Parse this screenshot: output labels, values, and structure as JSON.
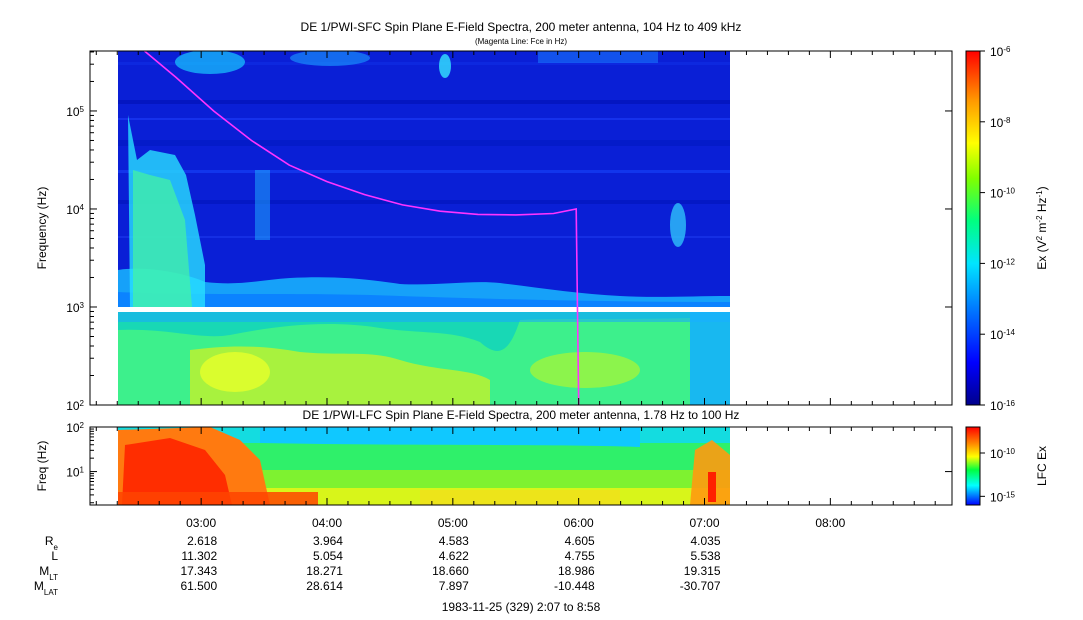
{
  "chart_data": [
    {
      "type": "heatmap",
      "title": "DE 1/PWI-SFC  Spin Plane E-Field Spectra, 200 meter antenna, 104 Hz to 409 kHz",
      "subtitle": "(Magenta Line: Fce in Hz)",
      "ylabel": "Frequency (Hz)",
      "yscale": "log",
      "ylim": [
        100,
        409000
      ],
      "y_ticks": [
        {
          "value": 100,
          "base": "10",
          "exp": "2"
        },
        {
          "value": 1000,
          "base": "10",
          "exp": "3"
        },
        {
          "value": 10000,
          "base": "10",
          "exp": "4"
        },
        {
          "value": 100000,
          "base": "10",
          "exp": "5"
        }
      ],
      "data_time_range_hours": [
        2.3,
        7.2
      ],
      "gap_frequency_hz": [
        900,
        1050
      ],
      "colorbar": {
        "label_prefix": "Ex (V",
        "label_sup1": "2",
        "label_mid": " m",
        "label_sup2": "-2",
        "label_mid2": " Hz",
        "label_sup3": "-1",
        "label_suffix": ")",
        "scale": "log",
        "range": [
          1e-16,
          1e-06
        ],
        "ticks": [
          {
            "value": 1e-06,
            "base": "10",
            "exp": "-6"
          },
          {
            "value": 1e-08,
            "base": "10",
            "exp": "-8"
          },
          {
            "value": 1e-10,
            "base": "10",
            "exp": "-10"
          },
          {
            "value": 1e-12,
            "base": "10",
            "exp": "-12"
          },
          {
            "value": 1e-14,
            "base": "10",
            "exp": "-14"
          },
          {
            "value": 1e-16,
            "base": "10",
            "exp": "-16"
          }
        ]
      },
      "fce_line": {
        "color": "#ff33ff",
        "points": [
          {
            "t": 2.55,
            "f": 409000
          },
          {
            "t": 2.8,
            "f": 220000
          },
          {
            "t": 3.1,
            "f": 100000
          },
          {
            "t": 3.4,
            "f": 50000
          },
          {
            "t": 3.7,
            "f": 28000
          },
          {
            "t": 4.0,
            "f": 19000
          },
          {
            "t": 4.3,
            "f": 14000
          },
          {
            "t": 4.6,
            "f": 11000
          },
          {
            "t": 4.9,
            "f": 9500
          },
          {
            "t": 5.2,
            "f": 8800
          },
          {
            "t": 5.5,
            "f": 8700
          },
          {
            "t": 5.8,
            "f": 9000
          },
          {
            "t": 5.98,
            "f": 10000
          },
          {
            "t": 6.0,
            "f": 100
          }
        ]
      }
    },
    {
      "type": "heatmap",
      "title": "DE 1/PWI-LFC  Spin Plane E-Field Spectra, 200 meter antenna, 1.78 Hz to 100 Hz",
      "ylabel": "Freq (Hz)",
      "yscale": "log",
      "ylim": [
        1.78,
        100
      ],
      "y_ticks": [
        {
          "value": 10,
          "base": "10",
          "exp": "1"
        },
        {
          "value": 100,
          "base": "10",
          "exp": "2"
        }
      ],
      "data_time_range_hours": [
        2.3,
        7.2
      ],
      "colorbar": {
        "label": "LFC Ex",
        "scale": "log",
        "range": [
          1e-16,
          1e-07
        ],
        "ticks": [
          {
            "value": 1e-10,
            "base": "10",
            "exp": "-10"
          },
          {
            "value": 1e-15,
            "base": "10",
            "exp": "-15"
          }
        ]
      }
    }
  ],
  "x_axis": {
    "range_hours": [
      2.1167,
      8.9667
    ],
    "major_ticks": [
      {
        "t": 3,
        "label": "03:00"
      },
      {
        "t": 4,
        "label": "04:00"
      },
      {
        "t": 5,
        "label": "05:00"
      },
      {
        "t": 6,
        "label": "06:00"
      },
      {
        "t": 7,
        "label": "07:00"
      },
      {
        "t": 8,
        "label": "08:00"
      }
    ],
    "footer": "1983-11-25 (329) 2:07 to 8:58"
  },
  "ephemeris": {
    "rows": [
      {
        "base": "R",
        "sub": "e",
        "values": [
          "2.618",
          "3.964",
          "4.583",
          "4.605",
          "4.035"
        ]
      },
      {
        "base": "L",
        "sub": "",
        "values": [
          "11.302",
          "5.054",
          "4.622",
          "4.755",
          "5.538"
        ]
      },
      {
        "base": "M",
        "sub": "LT",
        "values": [
          "17.343",
          "18.271",
          "18.660",
          "18.986",
          "19.315"
        ]
      },
      {
        "base": "M",
        "sub": "LAT",
        "values": [
          "61.500",
          "28.614",
          "7.897",
          "-10.448",
          "-30.707"
        ]
      }
    ]
  }
}
